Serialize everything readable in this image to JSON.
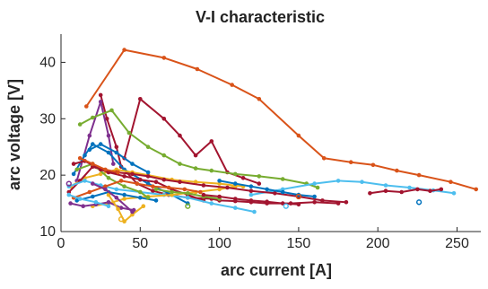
{
  "chart_data": {
    "type": "line",
    "title": "V-I characteristic",
    "xlabel": "arc current [A]",
    "ylabel": "arc voltage [V]",
    "xlim": [
      0,
      265
    ],
    "ylim": [
      10,
      45
    ],
    "xticks": [
      "0",
      "50",
      "100",
      "150",
      "200",
      "250"
    ],
    "yticks": [
      "10",
      "20",
      "30",
      "40"
    ],
    "grid": false,
    "legend": "none",
    "series": [
      {
        "color": "#D95319",
        "x": [
          16,
          40,
          65,
          86,
          108,
          125,
          150,
          166,
          183,
          197,
          212,
          226,
          246,
          262
        ],
        "y": [
          32.2,
          42.2,
          40.8,
          38.8,
          36.0,
          33.5,
          27.0,
          23.0,
          22.3,
          21.8,
          20.8,
          20.0,
          18.8,
          17.5
        ]
      },
      {
        "color": "#A2142F",
        "x": [
          25,
          29,
          35,
          38,
          48,
          58,
          68,
          80,
          95,
          100,
          110,
          120,
          130,
          145,
          160,
          175
        ],
        "y": [
          34.2,
          30.0,
          25.0,
          21.5,
          18.5,
          17.2,
          16.5,
          16.0,
          15.8,
          15.5,
          15.4,
          15.2,
          15.0,
          15.0,
          15.2,
          15.0
        ]
      },
      {
        "color": "#A2142F",
        "x": [
          40,
          50,
          65,
          75,
          85,
          95,
          105,
          115,
          125
        ],
        "y": [
          23.0,
          33.5,
          30.0,
          27.0,
          23.5,
          26.0,
          20.5,
          19.5,
          18.5
        ]
      },
      {
        "color": "#7E2F8E",
        "x": [
          10,
          18,
          25,
          30,
          33
        ],
        "y": [
          19.0,
          27.0,
          33.0,
          27.0,
          22.0
        ]
      },
      {
        "color": "#77AC30",
        "x": [
          12,
          20,
          32,
          43,
          55,
          65,
          75,
          85,
          95,
          110,
          125,
          140,
          155,
          162
        ],
        "y": [
          29.0,
          30.2,
          31.5,
          27.5,
          25.0,
          23.5,
          22.0,
          21.2,
          20.8,
          20.2,
          19.8,
          19.3,
          18.5,
          17.8
        ]
      },
      {
        "color": "#4DBEEE",
        "x": [
          120,
          140,
          160,
          175,
          190,
          205,
          220,
          235,
          248
        ],
        "y": [
          16.5,
          17.5,
          18.5,
          19.0,
          18.8,
          18.2,
          17.8,
          17.3,
          16.8
        ]
      },
      {
        "color": "#A2142F",
        "x": [
          195,
          205,
          215,
          225,
          233,
          240
        ],
        "y": [
          16.8,
          17.2,
          17.0,
          17.5,
          17.2,
          17.5
        ]
      },
      {
        "color": "#0072BD",
        "x": [
          8,
          15,
          20,
          30,
          40,
          55,
          70,
          80
        ],
        "y": [
          20.2,
          23.5,
          25.5,
          24.0,
          21.0,
          18.5,
          16.5,
          15.0
        ]
      },
      {
        "color": "#EDB120",
        "x": [
          6,
          15,
          25,
          35,
          45,
          55,
          70,
          85,
          100,
          115
        ],
        "y": [
          18.0,
          19.5,
          20.2,
          21.0,
          20.5,
          20.0,
          19.2,
          18.8,
          18.5,
          18.0
        ]
      },
      {
        "color": "#A2142F",
        "x": [
          5,
          12,
          20,
          30,
          40,
          50,
          60,
          70,
          80,
          90
        ],
        "y": [
          17.0,
          19.0,
          21.5,
          20.5,
          19.8,
          19.2,
          18.8,
          17.5,
          16.5,
          15.5
        ]
      },
      {
        "color": "#4DBEEE",
        "x": [
          5,
          15,
          25,
          35,
          50,
          65,
          80,
          95,
          110,
          122
        ],
        "y": [
          18.0,
          19.0,
          18.2,
          17.5,
          17.0,
          16.5,
          16.0,
          15.0,
          14.2,
          13.5
        ]
      },
      {
        "color": "#EDB120",
        "x": [
          20,
          30,
          40,
          55,
          70,
          85,
          100,
          110
        ],
        "y": [
          14.5,
          15.0,
          15.8,
          16.2,
          16.5,
          17.0,
          17.5,
          18.0
        ]
      },
      {
        "color": "#0072BD",
        "x": [
          10,
          20,
          30,
          40,
          50,
          60
        ],
        "y": [
          15.5,
          16.2,
          17.0,
          16.5,
          16.0,
          15.5
        ]
      },
      {
        "color": "#77AC30",
        "x": [
          10,
          20,
          30,
          40,
          50,
          55
        ],
        "y": [
          21.0,
          22.0,
          19.5,
          18.0,
          17.0,
          16.0
        ]
      },
      {
        "color": "#D95319",
        "x": [
          8,
          18,
          28,
          38,
          48,
          58,
          68,
          78,
          88
        ],
        "y": [
          16.0,
          17.0,
          18.0,
          19.0,
          18.5,
          18.0,
          17.8,
          17.5,
          17.0
        ]
      },
      {
        "color": "#7E2F8E",
        "x": [
          6,
          14,
          22,
          30,
          38,
          46
        ],
        "y": [
          15.0,
          14.5,
          14.8,
          15.2,
          14.2,
          13.8
        ]
      },
      {
        "color": "#A2142F",
        "x": [
          8,
          15,
          25,
          35,
          45,
          55,
          65,
          75,
          90,
          105,
          120,
          135,
          150,
          165,
          180
        ],
        "y": [
          22.0,
          22.5,
          21.0,
          20.5,
          20.2,
          19.8,
          19.2,
          18.8,
          18.2,
          17.8,
          17.2,
          16.8,
          16.2,
          15.5,
          15.2
        ]
      },
      {
        "color": "#0072BD",
        "x": [
          18,
          25,
          35,
          45,
          55
        ],
        "y": [
          24.5,
          25.5,
          24.0,
          22.0,
          20.5
        ]
      },
      {
        "color": "#EDB120",
        "x": [
          30,
          36,
          40,
          45,
          52
        ],
        "y": [
          16.5,
          14.0,
          11.8,
          13.0,
          14.5
        ]
      },
      {
        "color": "#4DBEEE",
        "x": [
          5,
          12,
          22,
          30
        ],
        "y": [
          16.5,
          15.8,
          15.2,
          14.5
        ]
      },
      {
        "color": "#77AC30",
        "x": [
          60,
          70,
          80,
          90,
          100
        ],
        "y": [
          17.5,
          17.0,
          16.8,
          16.2,
          15.8
        ]
      },
      {
        "color": "#D95319",
        "x": [
          12,
          20,
          28,
          36
        ],
        "y": [
          23.0,
          22.0,
          21.0,
          20.5
        ]
      },
      {
        "color": "#7E2F8E",
        "x": [
          20,
          28,
          35,
          45
        ],
        "y": [
          18.5,
          17.5,
          16.0,
          13.5
        ]
      },
      {
        "color": "#0072BD",
        "x": [
          100,
          110,
          120,
          130,
          140,
          150,
          160
        ],
        "y": [
          19.0,
          18.5,
          18.0,
          17.5,
          17.0,
          16.5,
          16.2
        ]
      },
      {
        "color": "#A2142F",
        "x": [
          90,
          100,
          110,
          120,
          130,
          140,
          150
        ],
        "y": [
          16.5,
          16.2,
          15.8,
          15.5,
          15.3,
          15.0,
          14.8
        ]
      }
    ],
    "markers": [
      {
        "color": "#4DBEEE",
        "x": 142,
        "y": 14.5
      },
      {
        "color": "#0072BD",
        "x": 226,
        "y": 15.2
      },
      {
        "color": "#EDB120",
        "x": 38,
        "y": 12.2
      },
      {
        "color": "#7E2F8E",
        "x": 5,
        "y": 18.5
      },
      {
        "color": "#D95319",
        "x": 150,
        "y": 16.2
      },
      {
        "color": "#77AC30",
        "x": 80,
        "y": 14.5
      }
    ]
  }
}
